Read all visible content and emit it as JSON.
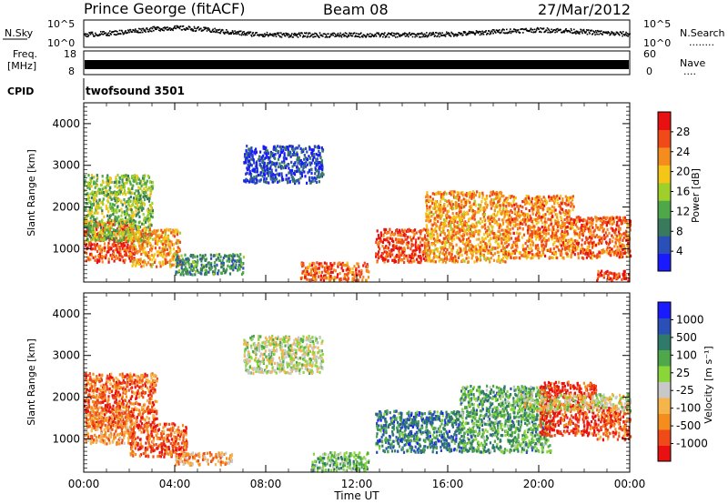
{
  "header": {
    "station": "Prince George (fitACF)",
    "beam": "Beam 08",
    "date": "27/Mar/2012"
  },
  "noise_panel": {
    "left_label": "N.Sky",
    "left_ticks": [
      "10^5",
      "10^0"
    ],
    "right_ticks": [
      "10^5",
      "10^0"
    ],
    "right_label": "N.Search",
    "right_label_dots": "........"
  },
  "freq_panel": {
    "left_label_line1": "Freq.",
    "left_label_line2": "[MHz]",
    "left_ticks": [
      "18",
      "8"
    ],
    "right_ticks": [
      "60",
      "0"
    ],
    "right_label": "Nave",
    "right_label_dots": "...."
  },
  "cpid": {
    "label": "CPID",
    "value": "twofsound 3501"
  },
  "x_axis": {
    "ticks": [
      "00:00",
      "04:00",
      "08:00",
      "12:00",
      "16:00",
      "20:00",
      "00:00"
    ],
    "label": "Time UT"
  },
  "chart_data": [
    {
      "type": "heatmap",
      "title": "",
      "ylabel": "Slant Range [km]",
      "xlabel": "Time UT",
      "x_range_hours": [
        0,
        24
      ],
      "ylim": [
        200,
        4500
      ],
      "y_ticks": [
        "4000",
        "3000",
        "2000",
        "1000"
      ],
      "y_tick_values": [
        4000,
        3000,
        2000,
        1000
      ],
      "colorbar": {
        "label": "Power [dB]",
        "tick_labels": [
          "28",
          "24",
          "20",
          "16",
          "12",
          "8",
          "4"
        ],
        "tick_values": [
          28,
          24,
          20,
          16,
          12,
          8,
          4
        ],
        "range": [
          0,
          30
        ],
        "colors": [
          "#1a1aff",
          "#2a50b8",
          "#3a7a5c",
          "#4ea84a",
          "#9fcf2a",
          "#f5c518",
          "#f58c1e",
          "#f04a18",
          "#e81010"
        ]
      },
      "regions": [
        {
          "t": [
            0.0,
            2.2
          ],
          "r": [
            700,
            1700
          ],
          "level": 0.85
        },
        {
          "t": [
            0.0,
            3.0
          ],
          "r": [
            1200,
            2800
          ],
          "level": 0.45
        },
        {
          "t": [
            2.0,
            4.2
          ],
          "r": [
            600,
            1500
          ],
          "level": 0.7
        },
        {
          "t": [
            4.0,
            7.0
          ],
          "r": [
            400,
            900
          ],
          "level": 0.3
        },
        {
          "t": [
            7.0,
            10.5
          ],
          "r": [
            2600,
            3500
          ],
          "level": 0.15
        },
        {
          "t": [
            9.5,
            12.5
          ],
          "r": [
            250,
            700
          ],
          "level": 0.8
        },
        {
          "t": [
            12.8,
            15.0
          ],
          "r": [
            700,
            1500
          ],
          "level": 0.85
        },
        {
          "t": [
            15.0,
            18.5
          ],
          "r": [
            700,
            2400
          ],
          "level": 0.7
        },
        {
          "t": [
            18.5,
            21.5
          ],
          "r": [
            800,
            2300
          ],
          "level": 0.75
        },
        {
          "t": [
            21.5,
            24.0
          ],
          "r": [
            800,
            1800
          ],
          "level": 0.8
        },
        {
          "t": [
            22.5,
            24.0
          ],
          "r": [
            250,
            500
          ],
          "level": 0.9
        }
      ]
    },
    {
      "type": "heatmap",
      "title": "",
      "ylabel": "Slant Range [km]",
      "xlabel": "Time UT",
      "x_range_hours": [
        0,
        24
      ],
      "ylim": [
        200,
        4500
      ],
      "y_ticks": [
        "4000",
        "3000",
        "2000",
        "1000"
      ],
      "y_tick_values": [
        4000,
        3000,
        2000,
        1000
      ],
      "colorbar": {
        "label": "Velocity [m s⁻¹]",
        "tick_labels": [
          "1000",
          "500",
          "100",
          "25",
          "-25",
          "-100",
          "-500",
          "-1000"
        ],
        "tick_values": [
          1000,
          500,
          100,
          25,
          -25,
          -100,
          -500,
          -1000
        ],
        "range": [
          -1000,
          1000
        ],
        "colors": [
          "#e81010",
          "#f04a18",
          "#f58c1e",
          "#f5b54a",
          "#c8c8c8",
          "#8ad63a",
          "#4ea84a",
          "#2f7a6a",
          "#2a50b8",
          "#1a1aff"
        ]
      },
      "regions": [
        {
          "t": [
            0.0,
            2.2
          ],
          "r": [
            900,
            1800
          ],
          "level": 0.28
        },
        {
          "t": [
            0.0,
            3.2
          ],
          "r": [
            1300,
            2600
          ],
          "level": 0.2
        },
        {
          "t": [
            2.0,
            4.5
          ],
          "r": [
            600,
            1400
          ],
          "level": 0.15
        },
        {
          "t": [
            4.0,
            6.5
          ],
          "r": [
            400,
            700
          ],
          "level": 0.3
        },
        {
          "t": [
            7.0,
            10.5
          ],
          "r": [
            2600,
            3500
          ],
          "level": 0.5
        },
        {
          "t": [
            10.0,
            12.5
          ],
          "r": [
            250,
            700
          ],
          "level": 0.62
        },
        {
          "t": [
            12.8,
            16.5
          ],
          "r": [
            700,
            1700
          ],
          "level": 0.75
        },
        {
          "t": [
            16.5,
            20.5
          ],
          "r": [
            700,
            2300
          ],
          "level": 0.65
        },
        {
          "t": [
            20.0,
            22.5
          ],
          "r": [
            1100,
            2400
          ],
          "level": 0.1
        },
        {
          "t": [
            22.5,
            24.0
          ],
          "r": [
            1000,
            1800
          ],
          "level": 0.15
        },
        {
          "t": [
            19.0,
            24.0
          ],
          "r": [
            1700,
            2100
          ],
          "level": 0.45
        }
      ]
    }
  ]
}
